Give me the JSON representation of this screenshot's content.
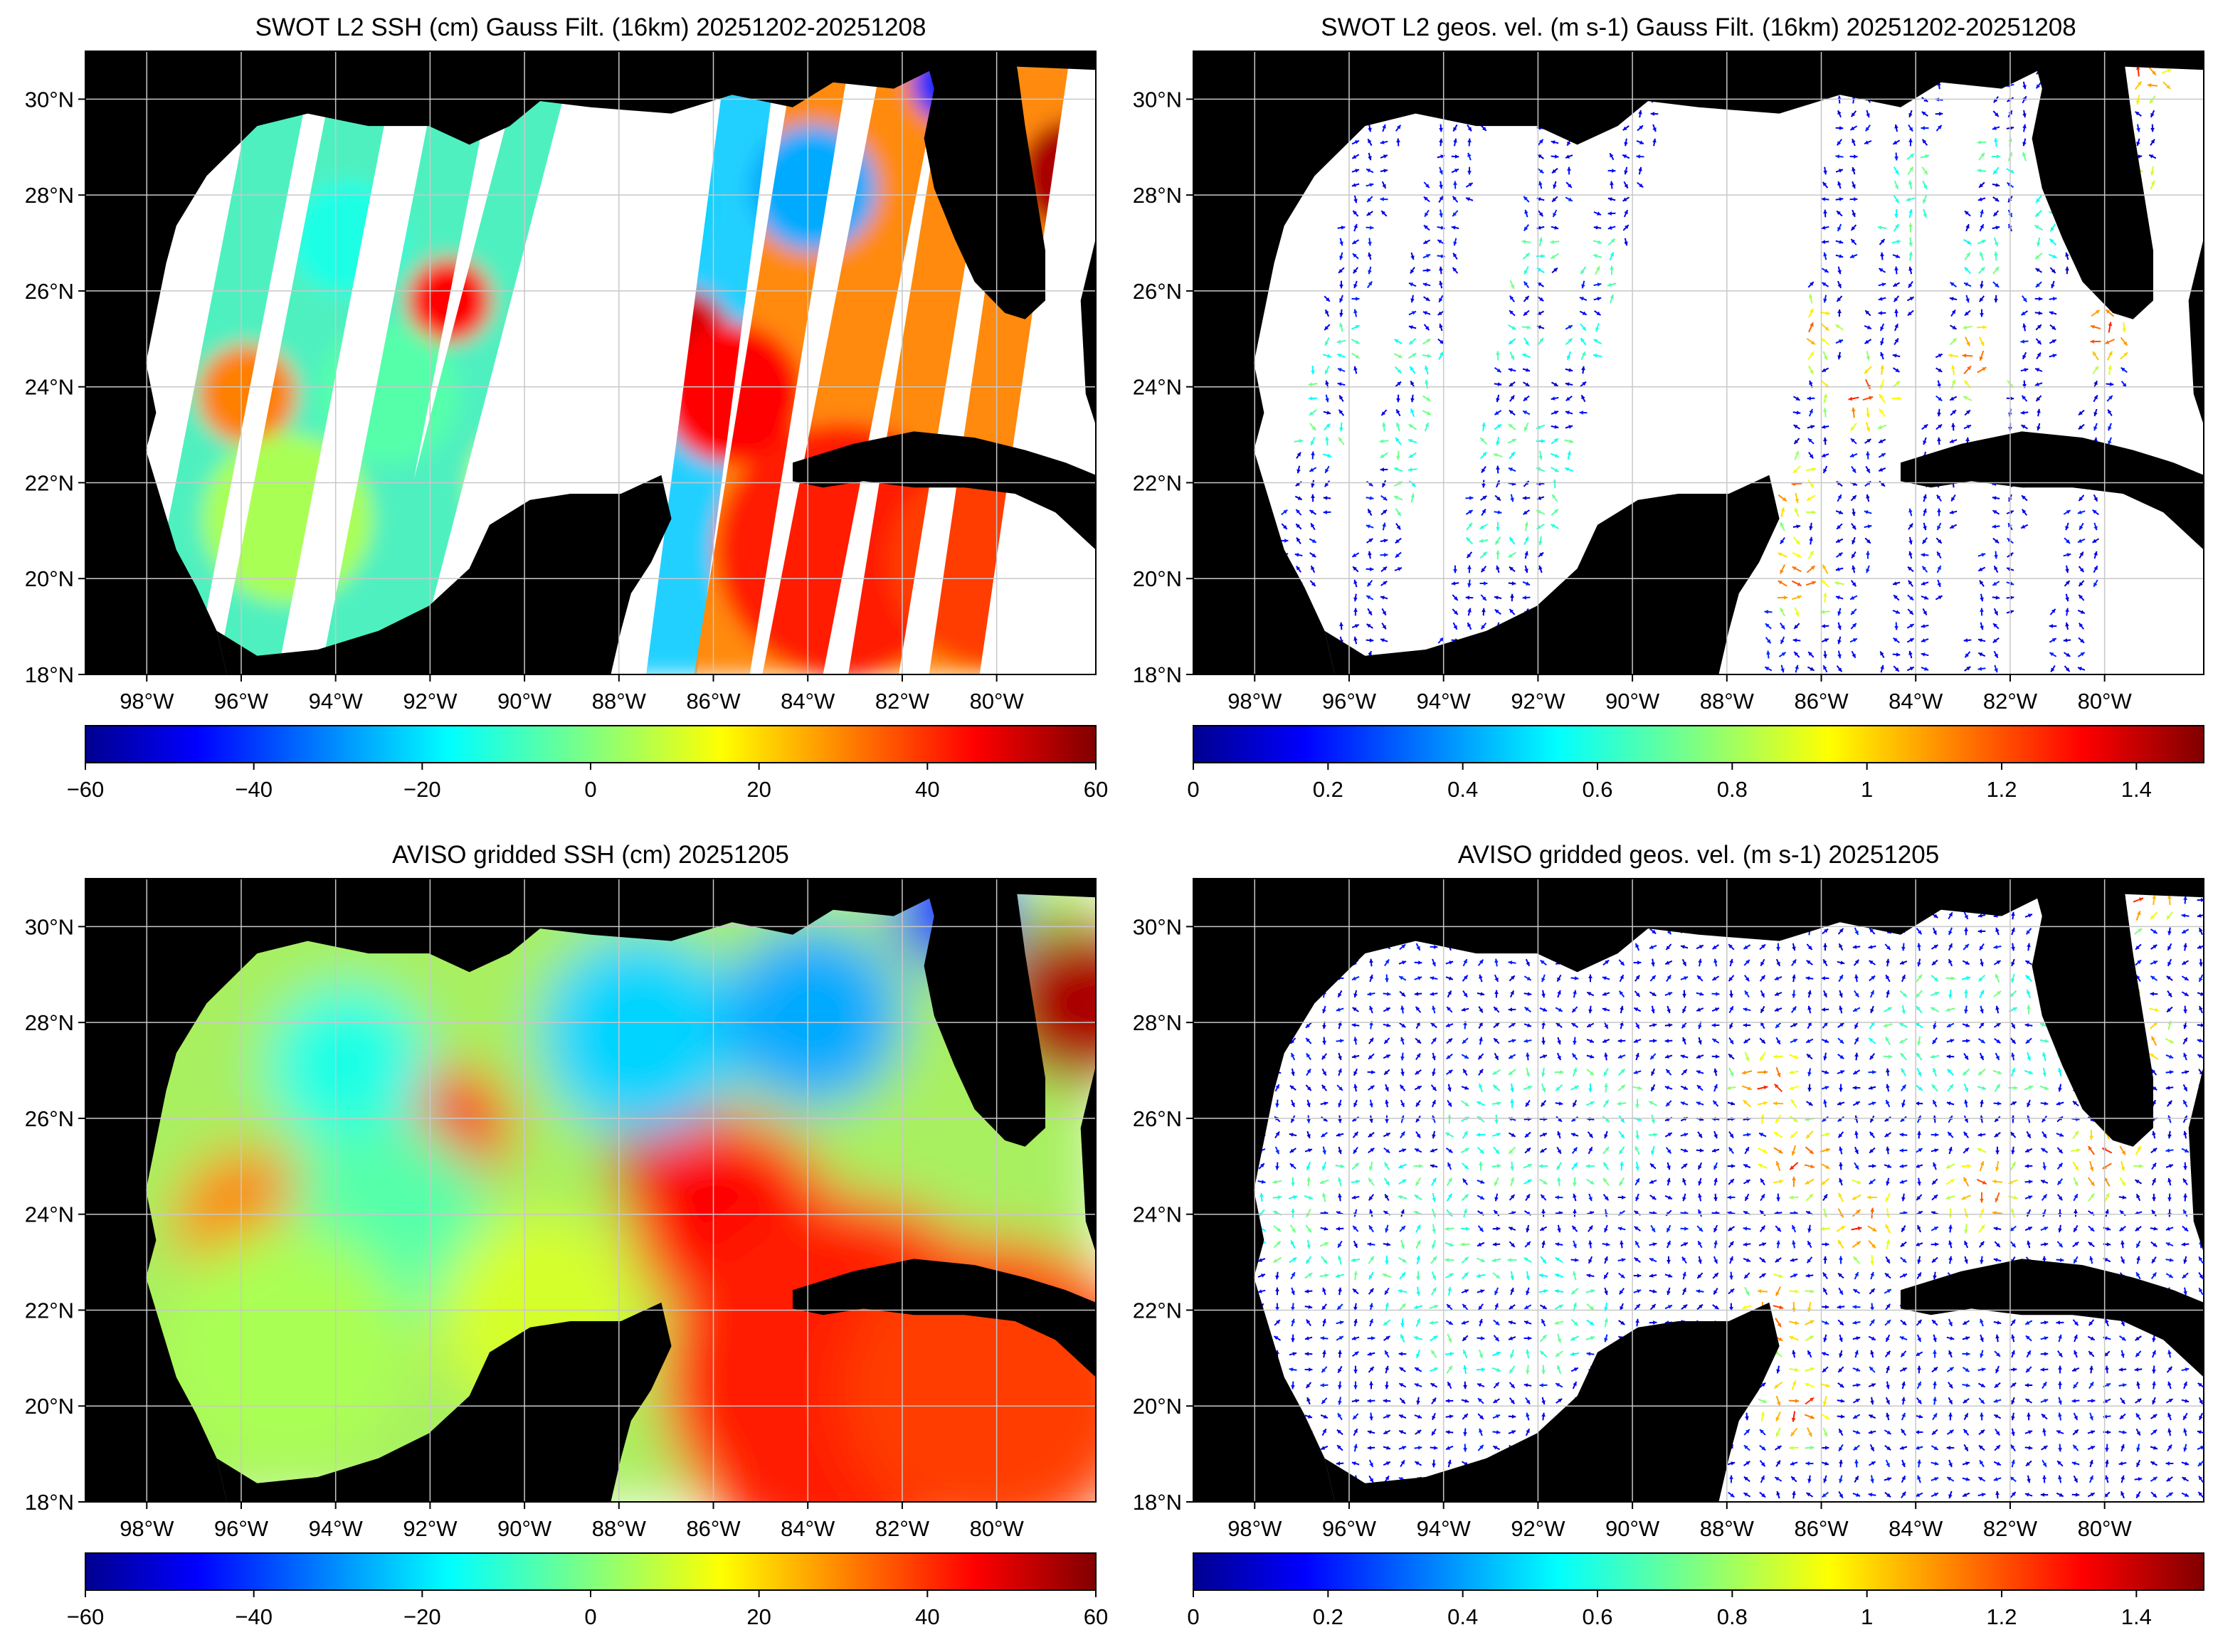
{
  "figure": {
    "panels": [
      {
        "id": "swot-ssh",
        "title": "SWOT L2 SSH (cm) Gauss Filt. (16km) 20251202-20251208"
      },
      {
        "id": "swot-vel",
        "title": "SWOT L2 geos. vel. (m s-1) Gauss Filt. (16km) 20251202-20251208"
      },
      {
        "id": "aviso-ssh",
        "title": "AVISO gridded SSH (cm) 20251205"
      },
      {
        "id": "aviso-vel",
        "title": "AVISO gridded geos. vel. (m s-1)  20251205"
      }
    ],
    "colors": {
      "land": "#000000",
      "no_data": "#ffffff",
      "grid": "#c8c8c8",
      "arrow_low": "#0000c8",
      "colormap": "jet"
    }
  },
  "chart_data": [
    {
      "type": "heatmap",
      "title": "SWOT L2 SSH (cm) Gauss Filt. (16km) 20251202-20251208",
      "field": "sea surface height",
      "units": "cm",
      "coverage": "swaths",
      "x_range": [
        -99.3,
        -77.9
      ],
      "y_range": [
        18,
        31
      ],
      "x_ticks": [
        "98°W",
        "96°W",
        "94°W",
        "92°W",
        "90°W",
        "88°W",
        "86°W",
        "84°W",
        "82°W",
        "80°W"
      ],
      "y_ticks": [
        "18°N",
        "20°N",
        "22°N",
        "24°N",
        "26°N",
        "28°N",
        "30°N"
      ],
      "colorbar": {
        "min": -60,
        "max": 60,
        "colormap": "jet",
        "ticks": [
          "−60",
          "−40",
          "−20",
          "0",
          "20",
          "40",
          "60"
        ]
      },
      "grid": true
    },
    {
      "type": "heatmap",
      "title": "SWOT L2 geos. vel. (m s-1) Gauss Filt. (16km) 20251202-20251208",
      "field": "geostrophic velocity",
      "units": "m s-1",
      "coverage": "swaths",
      "glyph": "arrows",
      "x_range": [
        -99.3,
        -77.9
      ],
      "y_range": [
        18,
        31
      ],
      "x_ticks": [
        "98°W",
        "96°W",
        "94°W",
        "92°W",
        "90°W",
        "88°W",
        "86°W",
        "84°W",
        "82°W",
        "80°W"
      ],
      "y_ticks": [
        "18°N",
        "20°N",
        "22°N",
        "24°N",
        "26°N",
        "28°N",
        "30°N"
      ],
      "colorbar": {
        "min": 0,
        "max": 1.5,
        "colormap": "jet",
        "ticks": [
          "0",
          "0.2",
          "0.4",
          "0.6",
          "0.8",
          "1",
          "1.2",
          "1.4"
        ]
      },
      "grid": true
    },
    {
      "type": "heatmap",
      "title": "AVISO gridded SSH (cm) 20251205",
      "field": "sea surface height",
      "units": "cm",
      "coverage": "full",
      "x_range": [
        -99.3,
        -77.9
      ],
      "y_range": [
        18,
        31
      ],
      "x_ticks": [
        "98°W",
        "96°W",
        "94°W",
        "92°W",
        "90°W",
        "88°W",
        "86°W",
        "84°W",
        "82°W",
        "80°W"
      ],
      "y_ticks": [
        "18°N",
        "20°N",
        "22°N",
        "24°N",
        "26°N",
        "28°N",
        "30°N"
      ],
      "colorbar": {
        "min": -60,
        "max": 60,
        "colormap": "jet",
        "ticks": [
          "−60",
          "−40",
          "−20",
          "0",
          "20",
          "40",
          "60"
        ]
      },
      "grid": true
    },
    {
      "type": "heatmap",
      "title": "AVISO gridded geos. vel. (m s-1)  20251205",
      "field": "geostrophic velocity",
      "units": "m s-1",
      "coverage": "full",
      "glyph": "arrows",
      "x_range": [
        -99.3,
        -77.9
      ],
      "y_range": [
        18,
        31
      ],
      "x_ticks": [
        "98°W",
        "96°W",
        "94°W",
        "92°W",
        "90°W",
        "88°W",
        "86°W",
        "84°W",
        "82°W",
        "80°W"
      ],
      "y_ticks": [
        "18°N",
        "20°N",
        "22°N",
        "24°N",
        "26°N",
        "28°N",
        "30°N"
      ],
      "colorbar": {
        "min": 0,
        "max": 1.5,
        "colormap": "jet",
        "ticks": [
          "0",
          "0.2",
          "0.4",
          "0.6",
          "0.8",
          "1",
          "1.2",
          "1.4"
        ]
      },
      "grid": true
    }
  ]
}
